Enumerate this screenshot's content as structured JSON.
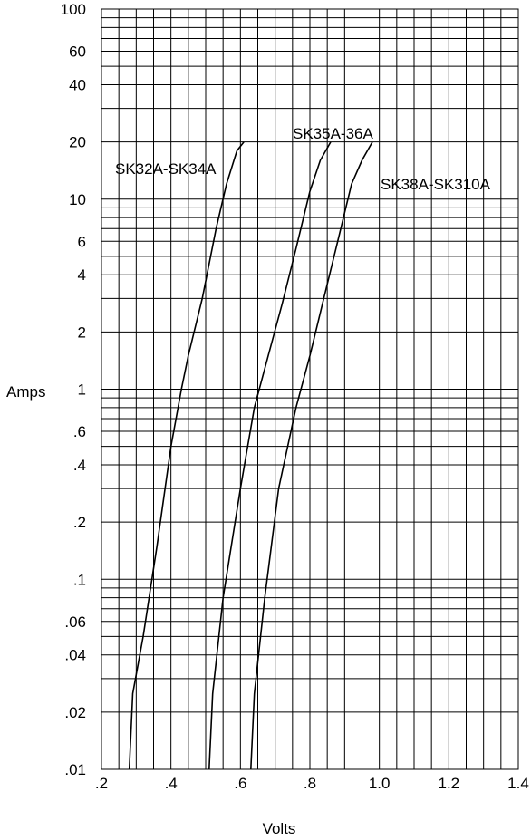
{
  "chart_data": {
    "type": "line",
    "xlabel": "Volts",
    "ylabel": "Amps",
    "xlim": [
      0.2,
      1.4
    ],
    "ylim": [
      0.01,
      100
    ],
    "y_scale": "log",
    "grid": true,
    "x_ticks": [
      0.2,
      0.4,
      0.6,
      0.8,
      1.0,
      1.2,
      1.4
    ],
    "x_tick_labels": [
      ".2",
      ".4",
      ".6",
      ".8",
      "1.0",
      "1.2",
      "1.4"
    ],
    "y_ticks": [
      0.01,
      0.02,
      0.04,
      0.06,
      0.1,
      0.2,
      0.4,
      0.6,
      1,
      2,
      4,
      6,
      10,
      20,
      40,
      60,
      100
    ],
    "y_tick_labels": [
      ".01",
      ".02",
      ".04",
      ".06",
      ".1",
      ".2",
      ".4",
      ".6",
      "1",
      "2",
      "4",
      "6",
      "10",
      "20",
      "40",
      "60",
      "100"
    ],
    "series": [
      {
        "name": "SK32A-SK34A",
        "x": [
          0.28,
          0.29,
          0.32,
          0.36,
          0.4,
          0.43,
          0.45,
          0.49,
          0.53,
          0.56,
          0.59,
          0.61
        ],
        "y": [
          0.01,
          0.025,
          0.05,
          0.15,
          0.5,
          1.0,
          1.5,
          3.0,
          7.0,
          12.0,
          18.0,
          20.0
        ]
      },
      {
        "name": "SK35A-36A",
        "x": [
          0.51,
          0.52,
          0.55,
          0.6,
          0.64,
          0.68,
          0.72,
          0.76,
          0.8,
          0.83,
          0.86
        ],
        "y": [
          0.01,
          0.025,
          0.08,
          0.3,
          0.8,
          1.5,
          2.8,
          5.5,
          11.0,
          16.0,
          20.0
        ]
      },
      {
        "name": "SK38A-SK310A",
        "x": [
          0.63,
          0.64,
          0.67,
          0.71,
          0.76,
          0.8,
          0.84,
          0.88,
          0.92,
          0.95,
          0.98
        ],
        "y": [
          0.01,
          0.025,
          0.08,
          0.3,
          0.8,
          1.5,
          3.0,
          6.0,
          12.0,
          16.0,
          20.0
        ]
      }
    ]
  }
}
